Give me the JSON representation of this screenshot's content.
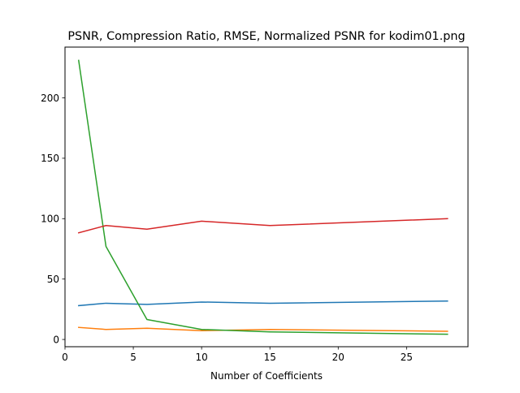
{
  "chart_data": {
    "type": "line",
    "title": "PSNR, Compression Ratio, RMSE, Normalized PSNR for kodim01.png",
    "xlabel": "Number of Coefficients",
    "ylabel": "",
    "xlim": [
      0,
      29.5
    ],
    "ylim": [
      -6,
      242
    ],
    "xticks": [
      0,
      5,
      10,
      15,
      20,
      25
    ],
    "yticks": [
      0,
      50,
      100,
      150,
      200
    ],
    "grid": false,
    "legend": false,
    "series": [
      {
        "color": "#1f77b4",
        "x": [
          1,
          3,
          6,
          10,
          15,
          28
        ],
        "y": [
          28,
          30,
          29,
          31,
          30,
          31.8
        ]
      },
      {
        "color": "#ff7f0e",
        "x": [
          1,
          3,
          6,
          10,
          15,
          28
        ],
        "y": [
          10,
          8.3,
          9.3,
          7.3,
          8.3,
          6.8
        ]
      },
      {
        "color": "#2ca02c",
        "x": [
          1,
          3,
          6,
          10,
          15,
          28
        ],
        "y": [
          231,
          77,
          16.5,
          8.3,
          6.3,
          4.3
        ]
      },
      {
        "color": "#d62728",
        "x": [
          1,
          3,
          6,
          10,
          15,
          28
        ],
        "y": [
          88.3,
          94.3,
          91.3,
          97.9,
          94.3,
          100
        ]
      }
    ]
  }
}
